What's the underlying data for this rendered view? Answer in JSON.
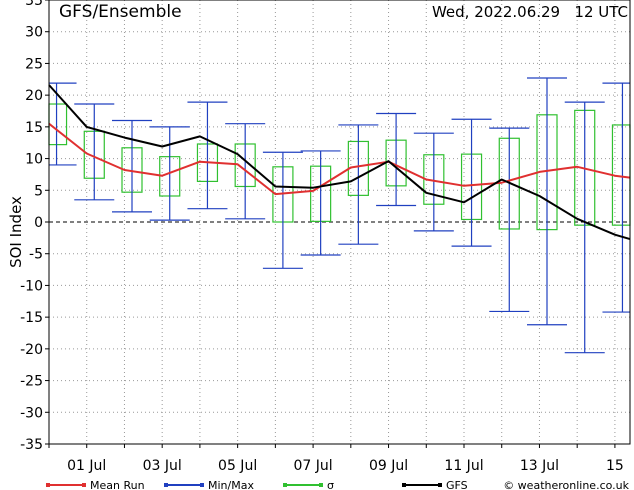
{
  "chart_data": {
    "type": "line",
    "title": "GFS/Ensemble",
    "run_label": "Wed, 2022.06.29   12 UTC",
    "ylabel": "SOI Index",
    "ylim": [
      -35,
      35
    ],
    "yticks": [
      35,
      30,
      25,
      20,
      15,
      10,
      5,
      0,
      -5,
      -10,
      -15,
      -20,
      -25,
      -30,
      -35
    ],
    "xlim": [
      0,
      15.4
    ],
    "xticks": [
      {
        "x": 1,
        "label": "01 Jul"
      },
      {
        "x": 3,
        "label": "03 Jul"
      },
      {
        "x": 5,
        "label": "05 Jul"
      },
      {
        "x": 7,
        "label": "07 Jul"
      },
      {
        "x": 9,
        "label": "09 Jul"
      },
      {
        "x": 11,
        "label": "11 Jul"
      },
      {
        "x": 13,
        "label": "13 Jul"
      },
      {
        "x": 15,
        "label": "15"
      }
    ],
    "grid": true,
    "legend_position": "bottom",
    "series": [
      {
        "name": "Mean Run",
        "color": "#e03030",
        "x": [
          0,
          1,
          2,
          3,
          4,
          5,
          6,
          7,
          8,
          9,
          10,
          11,
          12,
          13,
          14,
          15,
          15.4
        ],
        "values": [
          15.5,
          10.8,
          8.2,
          7.3,
          9.5,
          9.1,
          4.4,
          4.9,
          8.6,
          9.5,
          6.7,
          5.7,
          6.2,
          7.9,
          8.7,
          7.3,
          7.0
        ]
      },
      {
        "name": "Min/Max",
        "color": "#2040c0",
        "x": [
          0.2,
          1.2,
          2.2,
          3.2,
          4.2,
          5.2,
          6.2,
          7.2,
          8.2,
          9.2,
          10.2,
          11.2,
          12.2,
          13.2,
          14.2,
          15.2
        ],
        "min": [
          9,
          3.5,
          1.6,
          0.3,
          2.1,
          0.5,
          -7.3,
          -5.2,
          -3.5,
          2.6,
          -1.4,
          -3.8,
          -14.1,
          -16.2,
          -20.6,
          -14.2
        ],
        "max": [
          21.9,
          18.6,
          16.0,
          15.0,
          18.9,
          15.5,
          11.0,
          11.2,
          15.3,
          17.1,
          14.0,
          16.2,
          14.8,
          22.7,
          18.9,
          21.9
        ]
      },
      {
        "name": "σ",
        "color": "#30c030",
        "x": [
          0.2,
          1.2,
          2.2,
          3.2,
          4.2,
          5.2,
          6.2,
          7.2,
          8.2,
          9.2,
          10.2,
          11.2,
          12.2,
          13.2,
          14.2,
          15.2
        ],
        "low": [
          12.2,
          6.9,
          4.7,
          4.1,
          6.4,
          5.6,
          0.0,
          0.1,
          4.2,
          5.7,
          2.8,
          0.4,
          -1.1,
          -1.2,
          -0.5,
          -0.5
        ],
        "high": [
          18.6,
          14.3,
          11.7,
          10.3,
          12.3,
          12.3,
          8.7,
          8.8,
          12.7,
          12.9,
          10.6,
          10.7,
          13.2,
          16.9,
          17.6,
          15.3
        ]
      },
      {
        "name": "GFS",
        "color": "#000000",
        "x": [
          0,
          1,
          2,
          3,
          4,
          5,
          6,
          7,
          8,
          9,
          10,
          11,
          12,
          13,
          14,
          15,
          15.4
        ],
        "values": [
          21.6,
          15.0,
          13.3,
          11.9,
          13.5,
          10.7,
          5.6,
          5.4,
          6.4,
          9.6,
          4.6,
          3.1,
          6.7,
          4.1,
          0.5,
          -2.0,
          -2.7
        ]
      }
    ]
  },
  "footer": {
    "credit": "© weatheronline.co.uk"
  }
}
